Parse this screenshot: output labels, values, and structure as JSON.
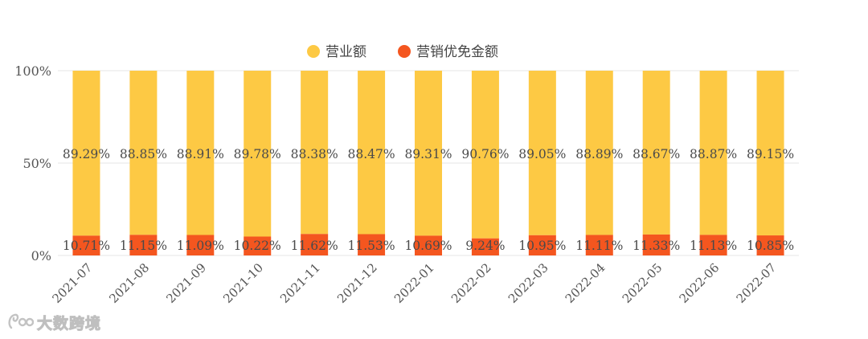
{
  "chart_data": {
    "type": "bar",
    "stacked": true,
    "normalized": true,
    "categories": [
      "2021-07",
      "2021-08",
      "2021-09",
      "2021-10",
      "2021-11",
      "2021-12",
      "2022-01",
      "2022-02",
      "2022-03",
      "2022-04",
      "2022-05",
      "2022-06",
      "2022-07"
    ],
    "series": [
      {
        "name": "营业额",
        "color": "#FDC944",
        "values": [
          89.29,
          88.85,
          88.91,
          89.78,
          88.38,
          88.47,
          89.31,
          90.76,
          89.05,
          88.89,
          88.67,
          88.87,
          89.15
        ],
        "labels": [
          "89.29%",
          "88.85%",
          "88.91%",
          "89.78%",
          "88.38%",
          "88.47%",
          "89.31%",
          "90.76%",
          "89.05%",
          "88.89%",
          "88.67%",
          "88.87%",
          "89.15%"
        ]
      },
      {
        "name": "营销优免金额",
        "color": "#F4561F",
        "values": [
          10.71,
          11.15,
          11.09,
          10.22,
          11.62,
          11.53,
          10.69,
          9.24,
          10.95,
          11.11,
          11.33,
          11.13,
          10.85
        ],
        "labels": [
          "10.71%",
          "11.15%",
          "11.09%",
          "10.22%",
          "11.62%",
          "11.53%",
          "10.69%",
          "9.24%",
          "10.95%",
          "11.11%",
          "11.33%",
          "11.13%",
          "10.85%"
        ]
      }
    ],
    "ylim": [
      0,
      100
    ],
    "y_ticks": [
      0,
      50,
      100
    ],
    "y_tick_labels": [
      "0%",
      "50%",
      "100%"
    ],
    "grid": true,
    "legend_position": "top-center"
  },
  "watermark": {
    "text": "大数跨境"
  }
}
